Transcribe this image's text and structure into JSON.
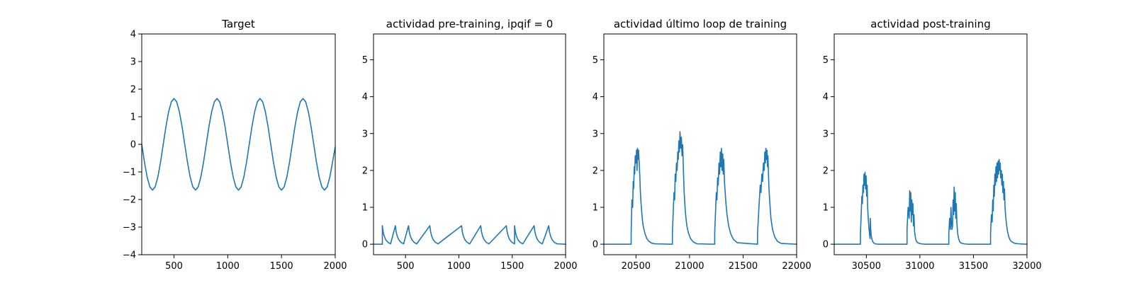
{
  "figure": {
    "background": "#ffffff",
    "line_color": "#1f77b4"
  },
  "chart_data": [
    {
      "type": "line",
      "title": "Target",
      "xlabel": "",
      "ylabel": "",
      "xlim": [
        200,
        2000
      ],
      "ylim": [
        -4,
        4
      ],
      "xticks": [
        500,
        1000,
        1500,
        2000
      ],
      "xtick_labels": [
        "500",
        "1000",
        "1500",
        "2000"
      ],
      "yticks": [
        -4,
        -3,
        -2,
        -1,
        0,
        1,
        2,
        3,
        4
      ],
      "ytick_labels": [
        "−4",
        "−3",
        "−2",
        "−1",
        "0",
        "1",
        "2",
        "3",
        "4"
      ],
      "grid": false,
      "series": [
        {
          "color": "#1f77b4",
          "x": [
            200,
            225,
            250,
            275,
            300,
            325,
            350,
            375,
            400,
            425,
            450,
            475,
            500,
            525,
            550,
            575,
            600,
            625,
            650,
            675,
            700,
            725,
            750,
            775,
            800,
            825,
            850,
            875,
            900,
            925,
            950,
            975,
            1000,
            1025,
            1050,
            1075,
            1100,
            1125,
            1150,
            1175,
            1200,
            1225,
            1250,
            1275,
            1300,
            1325,
            1350,
            1375,
            1400,
            1425,
            1450,
            1475,
            1500,
            1525,
            1550,
            1575,
            1600,
            1625,
            1650,
            1675,
            1700,
            1725,
            1750,
            1775,
            1800,
            1825,
            1850,
            1875,
            1900,
            1925,
            1950,
            1975,
            2000
          ],
          "y": [
            0,
            -0.64,
            -1.18,
            -1.54,
            -1.66,
            -1.54,
            -1.18,
            -0.64,
            0,
            0.64,
            1.18,
            1.54,
            1.66,
            1.54,
            1.18,
            0.64,
            0,
            -0.64,
            -1.18,
            -1.54,
            -1.66,
            -1.54,
            -1.18,
            -0.64,
            0,
            0.64,
            1.18,
            1.54,
            1.66,
            1.54,
            1.18,
            0.64,
            0,
            -0.64,
            -1.18,
            -1.54,
            -1.66,
            -1.54,
            -1.18,
            -0.64,
            0,
            0.64,
            1.18,
            1.54,
            1.66,
            1.54,
            1.18,
            0.64,
            0,
            -0.64,
            -1.18,
            -1.54,
            -1.66,
            -1.54,
            -1.18,
            -0.64,
            0,
            0.64,
            1.18,
            1.54,
            1.66,
            1.54,
            1.18,
            0.64,
            0,
            -0.64,
            -1.18,
            -1.54,
            -1.66,
            -1.54,
            -1.18,
            -0.64,
            -0.1
          ]
        }
      ]
    },
    {
      "type": "line",
      "title": "actividad pre-training, ipqif = 0",
      "xlabel": "",
      "ylabel": "",
      "xlim": [
        200,
        2000
      ],
      "ylim": [
        -0.285,
        5.7
      ],
      "xticks": [
        500,
        1000,
        1500,
        2000
      ],
      "xtick_labels": [
        "500",
        "1000",
        "1500",
        "2000"
      ],
      "yticks": [
        0,
        1,
        2,
        3,
        4,
        5
      ],
      "ytick_labels": [
        "0",
        "1",
        "2",
        "3",
        "4",
        "5"
      ],
      "grid": false,
      "series": [
        {
          "color": "#1f77b4",
          "x": [
            200,
            283,
            283,
            290,
            300,
            315,
            335,
            360,
            405,
            412,
            422,
            437,
            457,
            482,
            528,
            535,
            545,
            560,
            580,
            605,
            728,
            735,
            745,
            760,
            780,
            805,
            1025,
            1032,
            1042,
            1057,
            1077,
            1102,
            1205,
            1212,
            1222,
            1237,
            1257,
            1282,
            1445,
            1452,
            1462,
            1477,
            1497,
            1522,
            1522,
            1529,
            1539,
            1554,
            1574,
            1599,
            1705,
            1712,
            1722,
            1737,
            1757,
            1782,
            1842,
            1849,
            1859,
            1874,
            1894,
            1919,
            2000
          ],
          "y": [
            0,
            0,
            0.5,
            0.34,
            0.22,
            0.12,
            0.05,
            0.01,
            0.5,
            0.34,
            0.22,
            0.12,
            0.05,
            0.01,
            0.5,
            0.34,
            0.22,
            0.12,
            0.05,
            0.01,
            0.5,
            0.34,
            0.22,
            0.12,
            0.05,
            0.01,
            0.5,
            0.34,
            0.22,
            0.12,
            0.05,
            0.01,
            0.5,
            0.34,
            0.22,
            0.12,
            0.05,
            0.01,
            0.5,
            0.34,
            0.22,
            0.12,
            0.05,
            0.01,
            0.5,
            0.34,
            0.22,
            0.12,
            0.05,
            0.01,
            0.5,
            0.34,
            0.22,
            0.12,
            0.05,
            0.01,
            0.5,
            0.34,
            0.22,
            0.12,
            0.05,
            0.01,
            0
          ]
        }
      ]
    },
    {
      "type": "line",
      "title": "actividad último loop de training",
      "xlabel": "",
      "ylabel": "",
      "xlim": [
        20200,
        22000
      ],
      "ylim": [
        -0.285,
        5.7
      ],
      "xticks": [
        20500,
        21000,
        21500,
        22000
      ],
      "xtick_labels": [
        "20500",
        "21000",
        "21500",
        "22000"
      ],
      "yticks": [
        0,
        1,
        2,
        3,
        4,
        5
      ],
      "ytick_labels": [
        "0",
        "1",
        "2",
        "3",
        "4",
        "5"
      ],
      "grid": false,
      "series": [
        {
          "color": "#1f77b4",
          "x": [
            20200,
            20455,
            20455,
            20462,
            20469,
            20474,
            20478,
            20484,
            20488,
            20493,
            20500,
            20505,
            20510,
            20514,
            20519,
            20524,
            20530,
            20535,
            20540,
            20545,
            20553,
            20560,
            20570,
            20585,
            20600,
            20620,
            20645,
            20680,
            20840,
            20840,
            20848,
            20855,
            20861,
            20866,
            20872,
            20878,
            20884,
            20890,
            20895,
            20900,
            20905,
            20911,
            20918,
            20924,
            20930,
            20936,
            20941,
            20945,
            20950,
            20957,
            20965,
            20975,
            20990,
            21010,
            21035,
            21070,
            21235,
            21235,
            21243,
            21250,
            21256,
            21262,
            21268,
            21275,
            21281,
            21287,
            21293,
            21298,
            21304,
            21310,
            21315,
            21320,
            21326,
            21333,
            21340,
            21350,
            21365,
            21385,
            21410,
            21445,
            21635,
            21635,
            21648,
            21660,
            21667,
            21675,
            21682,
            21690,
            21697,
            21703,
            21708,
            21713,
            21718,
            21723,
            21728,
            21732,
            21737,
            21742,
            21750,
            21760,
            21775,
            21795,
            21820,
            21855,
            22000
          ],
          "y": [
            0,
            0,
            0.3,
            1.2,
            1.0,
            1.7,
            1.5,
            2.1,
            1.9,
            2.4,
            2.2,
            2.55,
            2.0,
            2.6,
            2.3,
            2.55,
            2.2,
            1.9,
            1.5,
            1.2,
            0.9,
            0.65,
            0.45,
            0.28,
            0.16,
            0.08,
            0.03,
            0.01,
            0,
            0.3,
            0.9,
            1.4,
            1.2,
            1.9,
            1.7,
            2.2,
            2.0,
            2.5,
            2.3,
            2.8,
            2.5,
            3.05,
            2.6,
            2.9,
            2.4,
            2.7,
            2.2,
            1.8,
            1.4,
            1.05,
            0.75,
            0.5,
            0.3,
            0.15,
            0.06,
            0.01,
            0,
            0.3,
            0.9,
            1.4,
            1.2,
            1.8,
            1.6,
            2.2,
            1.9,
            2.5,
            2.1,
            2.6,
            2.0,
            2.45,
            1.9,
            2.3,
            1.7,
            1.4,
            1.1,
            0.8,
            0.5,
            0.28,
            0.13,
            0.04,
            0,
            0.3,
            1.0,
            1.6,
            1.4,
            1.9,
            1.7,
            2.2,
            2.0,
            2.5,
            2.2,
            2.6,
            2.3,
            2.55,
            2.1,
            2.4,
            1.9,
            1.5,
            1.1,
            0.7,
            0.4,
            0.2,
            0.08,
            0.02,
            0
          ]
        }
      ]
    },
    {
      "type": "line",
      "title": "actividad post-training",
      "xlabel": "",
      "ylabel": "",
      "xlim": [
        30200,
        32000
      ],
      "ylim": [
        -0.285,
        5.7
      ],
      "xticks": [
        30500,
        31000,
        31500,
        32000
      ],
      "xtick_labels": [
        "30500",
        "31000",
        "31500",
        "32000"
      ],
      "yticks": [
        0,
        1,
        2,
        3,
        4,
        5
      ],
      "ytick_labels": [
        "0",
        "1",
        "2",
        "3",
        "4",
        "5"
      ],
      "grid": false,
      "series": [
        {
          "color": "#1f77b4",
          "x": [
            30200,
            30445,
            30445,
            30452,
            30458,
            30463,
            30468,
            30473,
            30478,
            30483,
            30488,
            30493,
            30498,
            30503,
            30508,
            30512,
            30518,
            30524,
            30530,
            30535,
            30537,
            30540,
            30545,
            30552,
            30560,
            30570,
            30585,
            30605,
            30635,
            30880,
            30880,
            30890,
            30900,
            30905,
            30910,
            30915,
            30920,
            30925,
            30930,
            30935,
            30940,
            30945,
            30950,
            30955,
            30960,
            30968,
            30980,
            30995,
            31015,
            31045,
            31270,
            31270,
            31278,
            31285,
            31290,
            31295,
            31300,
            31305,
            31310,
            31315,
            31320,
            31325,
            31330,
            31335,
            31340,
            31345,
            31350,
            31355,
            31362,
            31370,
            31380,
            31395,
            31415,
            31445,
            31660,
            31660,
            31668,
            31675,
            31680,
            31685,
            31690,
            31695,
            31700,
            31705,
            31710,
            31715,
            31720,
            31725,
            31730,
            31735,
            31740,
            31745,
            31750,
            31755,
            31760,
            31765,
            31770,
            31775,
            31780,
            31785,
            31790,
            31795,
            31800,
            31808,
            31818,
            31830,
            31845,
            31865,
            31890,
            31925,
            32000
          ],
          "y": [
            0,
            0,
            0.3,
            0.8,
            1.3,
            1.1,
            1.6,
            1.4,
            1.9,
            1.6,
            1.95,
            1.5,
            1.85,
            1.3,
            1.6,
            1.0,
            0.7,
            0.45,
            0.28,
            0.15,
            0.7,
            0.45,
            0.25,
            0.14,
            0.07,
            0.03,
            0.01,
            0,
            0,
            0,
            0.4,
            1.0,
            0.7,
            1.45,
            0.9,
            1.4,
            0.6,
            1.2,
            0.8,
            1.1,
            0.5,
            0.8,
            0.35,
            0.25,
            0.15,
            0.08,
            0.04,
            0.02,
            0.01,
            0,
            0,
            0.3,
            0.7,
            0.4,
            1.0,
            0.6,
            0.4,
            0.5,
            1.2,
            0.8,
            1.55,
            0.9,
            1.4,
            0.7,
            1.1,
            0.6,
            0.4,
            0.25,
            0.15,
            0.08,
            0.04,
            0.02,
            0.01,
            0,
            0,
            0.3,
            0.8,
            0.6,
            1.2,
            0.9,
            1.6,
            1.3,
            1.9,
            1.6,
            2.1,
            1.7,
            2.2,
            1.8,
            2.25,
            1.9,
            2.3,
            2.0,
            2.2,
            1.8,
            2.0,
            1.6,
            1.9,
            1.4,
            1.7,
            1.2,
            1.5,
            1.0,
            0.8,
            0.55,
            0.35,
            0.2,
            0.1,
            0.05,
            0.02,
            0.01,
            0
          ]
        }
      ]
    }
  ]
}
